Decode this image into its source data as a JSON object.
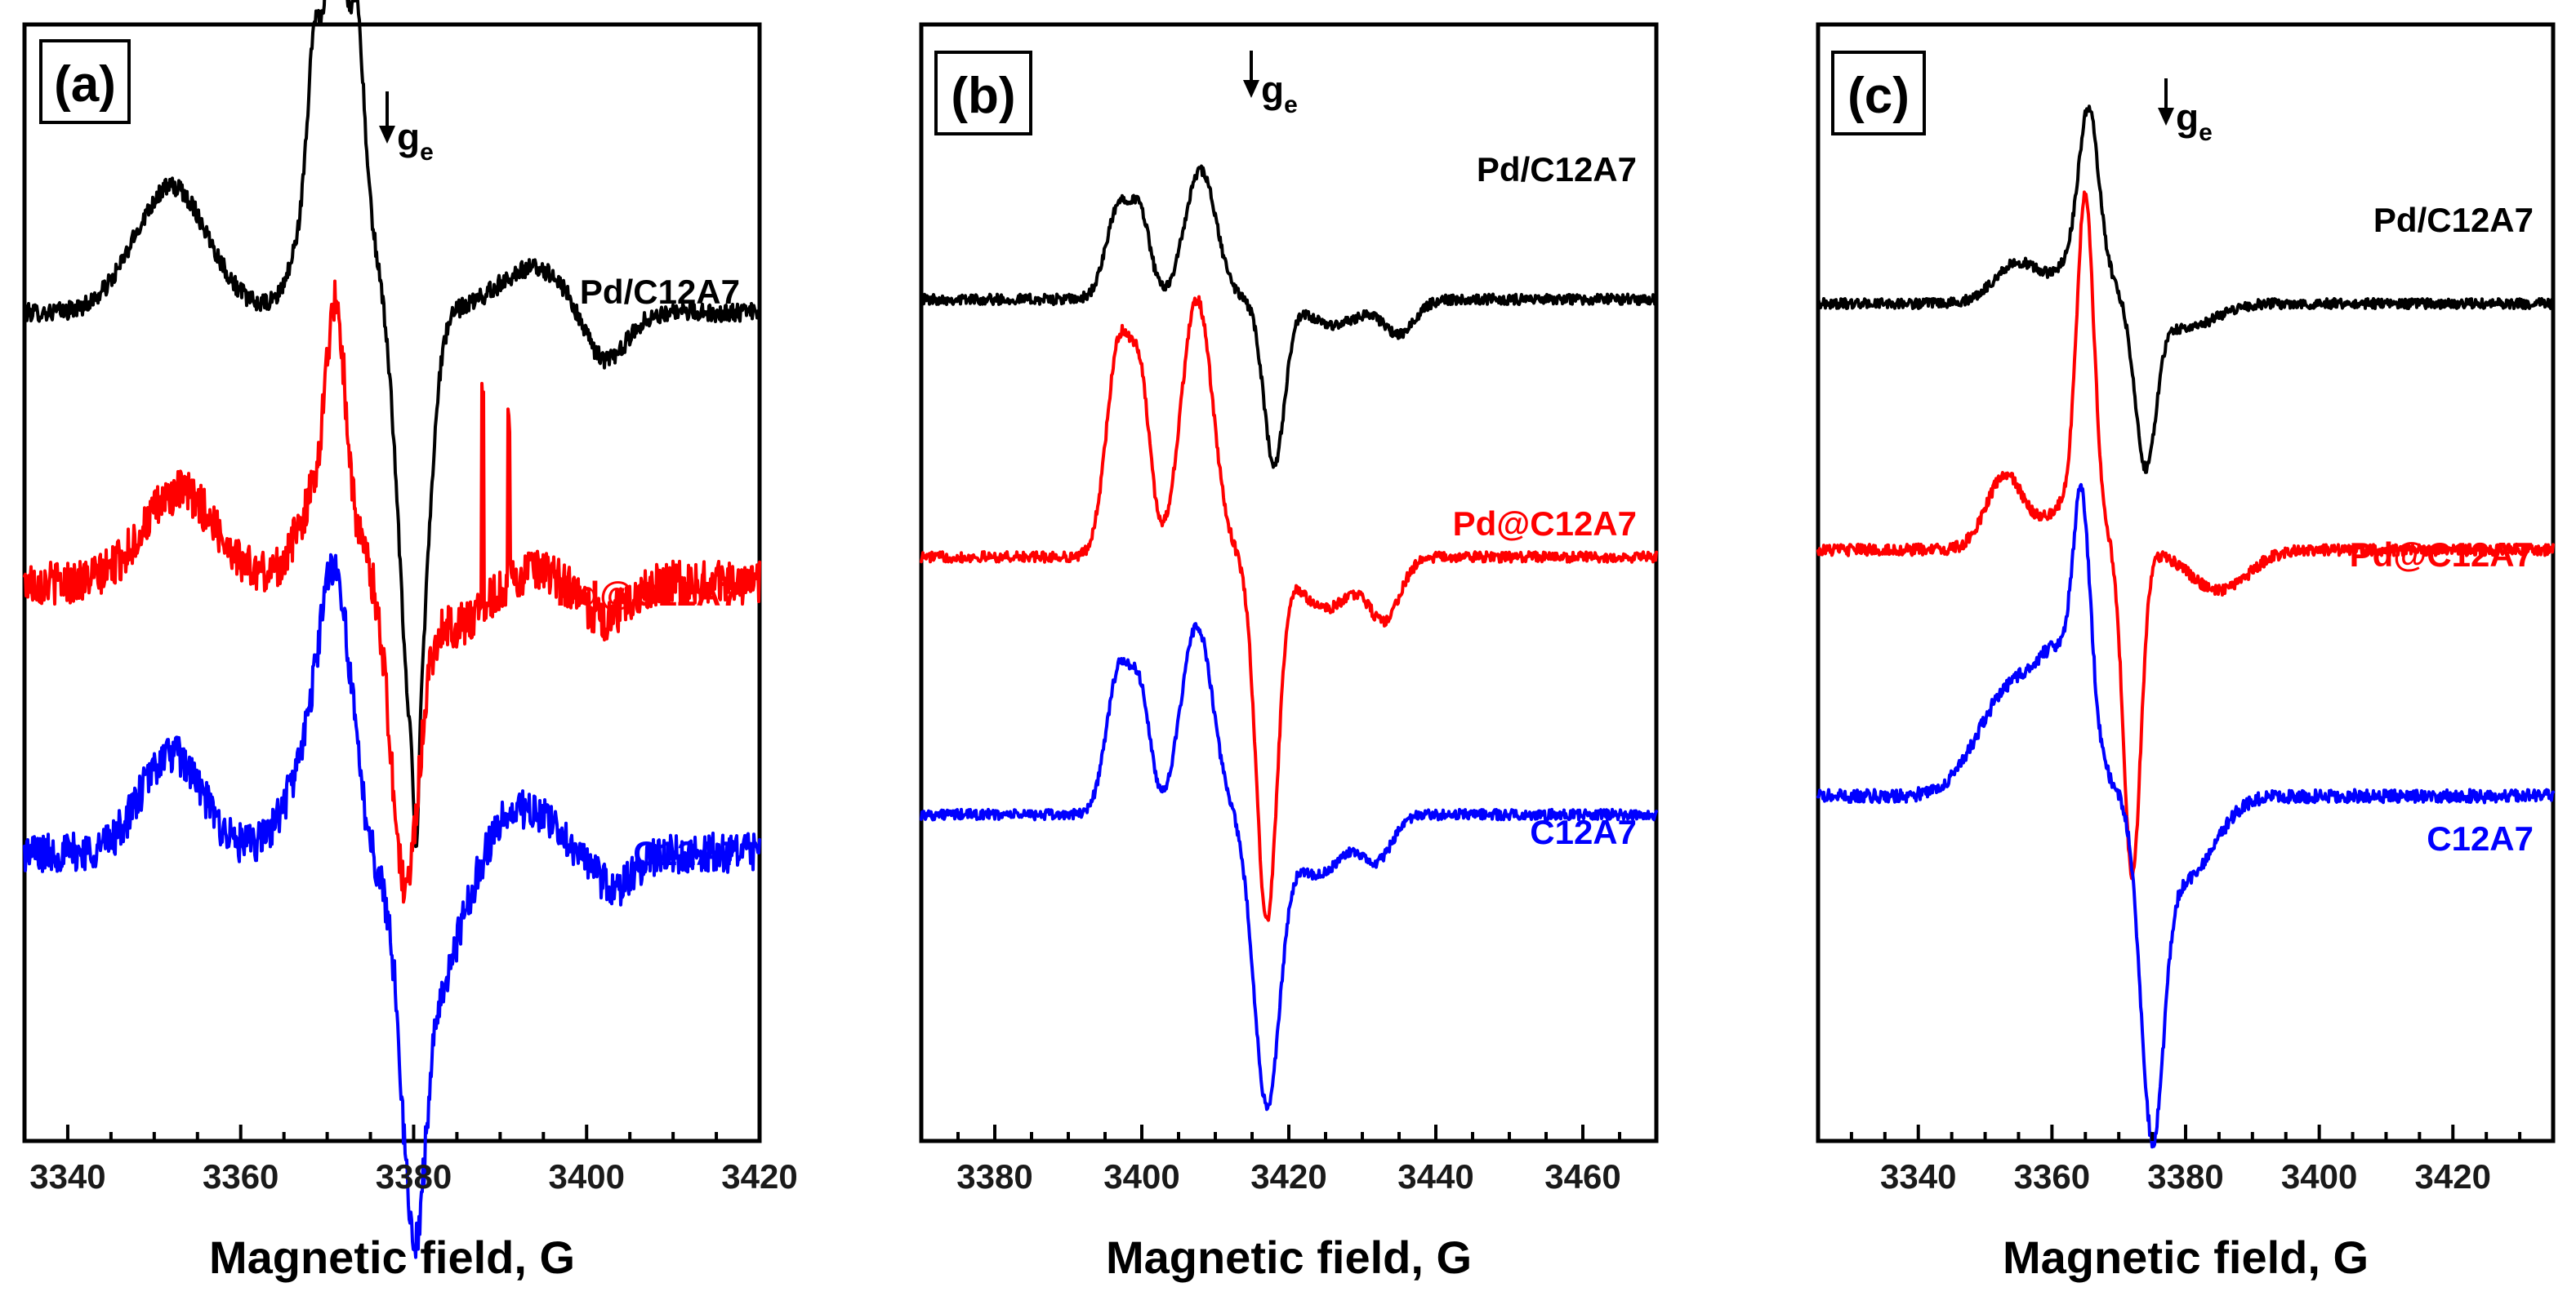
{
  "chart_data": [
    {
      "type": "line",
      "panel_label": "(a)",
      "xlabel": "Magnetic field, G",
      "ylabel": "",
      "xlim": [
        3335,
        3420
      ],
      "xticks": [
        3340,
        3360,
        3380,
        3400,
        3420
      ],
      "ge_position": 3376,
      "annotation": {
        "symbol": "g",
        "subscript": "e"
      },
      "series": [
        {
          "name": "Pd/C12A7",
          "color": "#000000",
          "baseline": 0.3,
          "noise": 0.01,
          "spikes": [],
          "features": [
            [
              3352,
              6,
              0.14
            ],
            [
              3368.5,
              1.0,
              0.12
            ],
            [
              3371,
              1.0,
              0.28
            ],
            [
              3373.5,
              1.0,
              0.14
            ],
            [
              3371,
              4.0,
              0.3
            ],
            [
              3380,
              2.2,
              -0.48
            ],
            [
              3380.3,
              0.4,
              -0.12
            ],
            [
              3394,
              6,
              0.05
            ],
            [
              3402,
              3.5,
              -0.06
            ]
          ]
        },
        {
          "name": "Pd@C12A7",
          "color": "#ff0000",
          "baseline": 0.0,
          "noise": 0.024,
          "spikes": [
            [
              3388,
              0.25
            ],
            [
              3391,
              0.17
            ]
          ],
          "features": [
            [
              3353,
              6,
              0.1
            ],
            [
              3371,
              1.5,
              0.2
            ],
            [
              3370,
              4.0,
              0.12
            ],
            [
              3379,
              2.2,
              -0.32
            ],
            [
              3385,
              6,
              -0.05
            ],
            [
              3392,
              5,
              0.02
            ],
            [
              3402,
              3.5,
              -0.04
            ]
          ]
        },
        {
          "name": "C12A7",
          "color": "#0000ff",
          "baseline": -0.3,
          "noise": 0.022,
          "spikes": [],
          "features": [
            [
              3352,
              5,
              0.11
            ],
            [
              3371,
              2.5,
              0.22
            ],
            [
              3369,
              4.5,
              0.12
            ],
            [
              3380,
              1.8,
              -0.3
            ],
            [
              3382,
              5,
              -0.16
            ],
            [
              3392,
              6,
              0.05
            ],
            [
              3403,
              3.5,
              -0.04
            ]
          ]
        }
      ]
    },
    {
      "type": "line",
      "panel_label": "(b)",
      "xlabel": "Magnetic field, G",
      "ylabel": "",
      "xlim": [
        3370,
        3470
      ],
      "xticks": [
        3380,
        3400,
        3420,
        3440,
        3460
      ],
      "ge_position": 3414,
      "annotation": {
        "symbol": "g",
        "subscript": "e"
      },
      "series": [
        {
          "name": "Pd/C12A7",
          "color": "#000000",
          "baseline": 0.3,
          "noise": 0.006,
          "spikes": [],
          "features": [
            [
              3397,
              2.5,
              0.11
            ],
            [
              3400,
              1.8,
              0.08
            ],
            [
              3408,
              3.0,
              0.15
            ],
            [
              3418,
              2.0,
              -0.19
            ],
            [
              3426,
              5,
              -0.03
            ],
            [
              3435,
              3,
              -0.04
            ]
          ]
        },
        {
          "name": "Pd@C12A7",
          "color": "#ff0000",
          "baseline": 0.0,
          "noise": 0.006,
          "spikes": [],
          "features": [
            [
              3397,
              2.5,
              0.25
            ],
            [
              3400,
              1.8,
              0.16
            ],
            [
              3407.5,
              3.0,
              0.3
            ],
            [
              3417,
              2.0,
              -0.42
            ],
            [
              3425,
              5,
              -0.06
            ],
            [
              3433,
              3,
              -0.07
            ]
          ]
        },
        {
          "name": "C12A7",
          "color": "#0000ff",
          "baseline": -0.3,
          "noise": 0.006,
          "spikes": [],
          "features": [
            [
              3397,
              2.5,
              0.17
            ],
            [
              3400,
              1.8,
              0.11
            ],
            [
              3407.5,
              3.0,
              0.22
            ],
            [
              3417,
              2.5,
              -0.33
            ],
            [
              3424,
              5,
              -0.07
            ],
            [
              3432,
              3,
              -0.05
            ]
          ]
        }
      ]
    },
    {
      "type": "line",
      "panel_label": "(c)",
      "xlabel": "Magnetic field, G",
      "ylabel": "",
      "xlim": [
        3325,
        3435
      ],
      "xticks": [
        3340,
        3360,
        3380,
        3400,
        3420
      ],
      "ge_position": 3375,
      "annotation": {
        "symbol": "g",
        "subscript": "e"
      },
      "series": [
        {
          "name": "Pd/C12A7",
          "color": "#000000",
          "baseline": 0.3,
          "noise": 0.006,
          "spikes": [],
          "features": [
            [
              3355,
              5,
              0.05
            ],
            [
              3365.5,
              2.0,
              0.17
            ],
            [
              3365,
              4.5,
              0.07
            ],
            [
              3374,
              2.2,
              -0.19
            ],
            [
              3380,
              6,
              -0.03
            ]
          ]
        },
        {
          "name": "Pd@C12A7",
          "color": "#ff0000",
          "baseline": 0.0,
          "noise": 0.007,
          "spikes": [],
          "features": [
            [
              3353,
              4,
              0.09
            ],
            [
              3365,
              1.8,
              0.38
            ],
            [
              3363,
              5,
              0.06
            ],
            [
              3372,
              1.8,
              -0.4
            ],
            [
              3385,
              6,
              -0.05
            ]
          ]
        },
        {
          "name": "C12A7",
          "color": "#0000ff",
          "baseline": -0.3,
          "noise": 0.008,
          "spikes": [],
          "features": [
            [
              3354,
              7,
              0.13
            ],
            [
              3364.5,
              1.8,
              0.25
            ],
            [
              3362,
              5,
              0.14
            ],
            [
              3375,
              2.4,
              -0.37
            ],
            [
              3380,
              6,
              -0.1
            ]
          ]
        }
      ]
    }
  ]
}
